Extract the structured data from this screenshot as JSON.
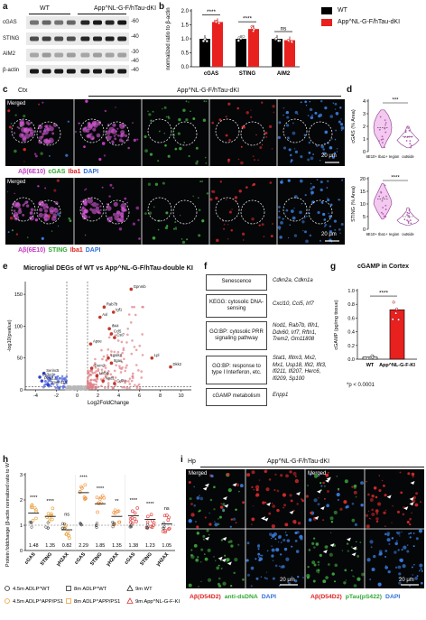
{
  "panels": [
    "a",
    "b",
    "c",
    "d",
    "e",
    "f",
    "g",
    "h",
    "i"
  ],
  "a": {
    "groups": [
      "WT",
      "App^NL-G-F/hTau-dKI"
    ],
    "bands": [
      {
        "name": "cGAS",
        "kda": "-60"
      },
      {
        "name": "STING",
        "kda": "-40"
      },
      {
        "name": "AIM2",
        "kda": "-40"
      },
      {
        "name": "β-actin",
        "kda": "-40"
      }
    ],
    "extra_kda": "-30"
  },
  "b": {
    "ylabel": "normalized ratio to β-actin",
    "legend": [
      "WT",
      "App^NL-G-F/hTau-dKI"
    ],
    "sig": [
      "****",
      "****",
      "ns"
    ],
    "chart_data": {
      "type": "bar",
      "categories": [
        "cGAS",
        "STING",
        "AIM2"
      ],
      "ylim": [
        0,
        2.0
      ],
      "yticks": [
        "0.0",
        "0.5",
        "1.0",
        "1.5",
        "2.0"
      ],
      "series": [
        {
          "name": "WT",
          "values": [
            1.0,
            1.0,
            1.0
          ],
          "color": "#000000"
        },
        {
          "name": "App^NL-G-F/hTau-dKI",
          "values": [
            1.6,
            1.35,
            0.95
          ],
          "color": "#e8201e"
        }
      ]
    }
  },
  "c": {
    "region": "Ctx",
    "title": "App^NL-G-F/hTau-dKI",
    "merged": "Merged",
    "scale1": "20 μm",
    "scale2": "20 μm",
    "row1_legend": [
      {
        "text": "Aβ(6E10)",
        "color": "#c63cc6"
      },
      {
        "text": "cGAS",
        "color": "#2fa82f"
      },
      {
        "text": "Iba1",
        "color": "#e02020"
      },
      {
        "text": "DAPI",
        "color": "#2f6fd6"
      }
    ],
    "row2_legend": [
      {
        "text": "Aβ(6E10)",
        "color": "#c63cc6"
      },
      {
        "text": "STING",
        "color": "#2fa82f"
      },
      {
        "text": "Iba1",
        "color": "#e02020"
      },
      {
        "text": "DAPI",
        "color": "#2f6fd6"
      }
    ]
  },
  "d": {
    "top": {
      "ylabel": "cGAS (% Area)",
      "sig": "***",
      "yticks": [
        "0",
        "1",
        "2",
        "3",
        "4"
      ],
      "ymax": 4
    },
    "bottom": {
      "ylabel": "STING (% Area)",
      "sig": "****",
      "yticks": [
        "0",
        "5",
        "10",
        "15",
        "20"
      ],
      "ymax": 20
    },
    "xcats": [
      "6E10+ Iba1+ region",
      "outside"
    ]
  },
  "e": {
    "title": "Microglial DEGs of WT vs App^NL-G-F/hTau-double KI",
    "xlabel": "Log2FoldChange",
    "ylabel": "-log10(pvalue)",
    "xticks": [
      "-4",
      "-2",
      "0",
      "2",
      "4",
      "6",
      "8",
      "10"
    ],
    "yticks": [
      "0",
      "50",
      "100",
      "150"
    ],
    "labels": [
      "Gpnmb",
      "Rab7b",
      "Igf1",
      "Axl",
      "Ifi44",
      "Ccl5",
      "Cst7",
      "Apoe",
      "Lgals3",
      "Itgax",
      "Lpl",
      "Dkk2",
      "Trem2",
      "Serinc5",
      "Cx3cr1",
      "P2ry12",
      "Tmem119",
      "Nod1",
      "Cd74",
      "Lilrb4"
    ]
  },
  "f": {
    "rows": [
      {
        "term": "Senescence",
        "genes": "Cdkn2a, Cdkn1a"
      },
      {
        "term": "KEGG: cytosolic DNA-sensing",
        "genes": "Cxcl10, Ccl5, Irf7"
      },
      {
        "term": "GO:BP: cytosolic PRR signaling pathway",
        "genes": "Nod1, Rab7b, Ifih1, Ddx60, Irf7, Rftn1, Trem2, Gm11808"
      },
      {
        "term": "GO:BP: response to type I Interferon, etc.",
        "genes": "Stat1, Ifitm3, Mx2, Mx1, Usp18, Ifit2, Ifit3, Ifi211, Ifi207, Herc6, Ifi209, Sp100"
      },
      {
        "term": "cGAMP metabolism",
        "genes": "Enpp1"
      }
    ]
  },
  "g": {
    "title": "cGAMP in Cortex",
    "ylabel": "cGAMP (pg/mg tissue)",
    "sig": "****",
    "pnote": "*p < 0.0001",
    "chart_data": {
      "type": "bar",
      "categories": [
        "WT",
        "App^NL-G-F-KI"
      ],
      "values": [
        0.03,
        0.72
      ],
      "ylim": [
        0,
        1.0
      ],
      "yticks": [
        "0.0",
        "0.2",
        "0.4",
        "0.6",
        "0.8",
        "1.0"
      ]
    }
  },
  "h": {
    "ylabel": "Protein foldchange (β-actin normalized ratio to WT)",
    "sig": [
      "****",
      "****",
      "ns",
      "****",
      "****",
      "**",
      "****",
      "****",
      "ns"
    ],
    "values_text": [
      "1.48",
      "1.35",
      "0.82",
      "2.29",
      "1.85",
      "1.35",
      "1.38",
      "1.23",
      "1.05"
    ],
    "legend": [
      {
        "text": "4.5m ADLP^WT",
        "marker": "circle",
        "color": "#333333"
      },
      {
        "text": "8m ADLP^WT",
        "marker": "square",
        "color": "#333333"
      },
      {
        "text": "9m WT",
        "marker": "triangle",
        "color": "#333333"
      },
      {
        "text": "4.5m ADLP^APP/PS1",
        "marker": "circle",
        "color": "#e8a23a"
      },
      {
        "text": "8m ADLP^APP/PS1",
        "marker": "square",
        "color": "#e8a23a"
      },
      {
        "text": "9m App^NL-G-F-KI",
        "marker": "triangle",
        "color": "#e23a3a"
      }
    ],
    "chart_data": {
      "type": "scatter",
      "categories": [
        "cGAS",
        "STING",
        "γH2AX",
        "cGAS",
        "STING",
        "γH2AX",
        "cGAS",
        "STING",
        "γH2AX"
      ],
      "ylim": [
        0,
        3
      ],
      "yticks": [
        "0",
        "1",
        "2",
        "3"
      ],
      "means": [
        1.48,
        1.35,
        0.82,
        2.29,
        1.85,
        1.35,
        1.38,
        1.23,
        1.05
      ]
    }
  },
  "i": {
    "region": "Hp",
    "title": "App^NL-G-F/hTau-dKI",
    "merged1": "Merged",
    "merged2": "Merged",
    "scale1": "20 μm",
    "scale2": "20 μm",
    "legend_left": [
      {
        "text": "Aβ(D54D2)",
        "color": "#e02020"
      },
      {
        "text": "anti-dsDNA",
        "color": "#2fa82f"
      },
      {
        "text": "DAPI",
        "color": "#2f6fd6"
      }
    ],
    "legend_right": [
      {
        "text": "Aβ(D54D2)",
        "color": "#e02020"
      },
      {
        "text": "pTau(pS422)",
        "color": "#2fa82f"
      },
      {
        "text": "DAPI",
        "color": "#2f6fd6"
      }
    ]
  }
}
